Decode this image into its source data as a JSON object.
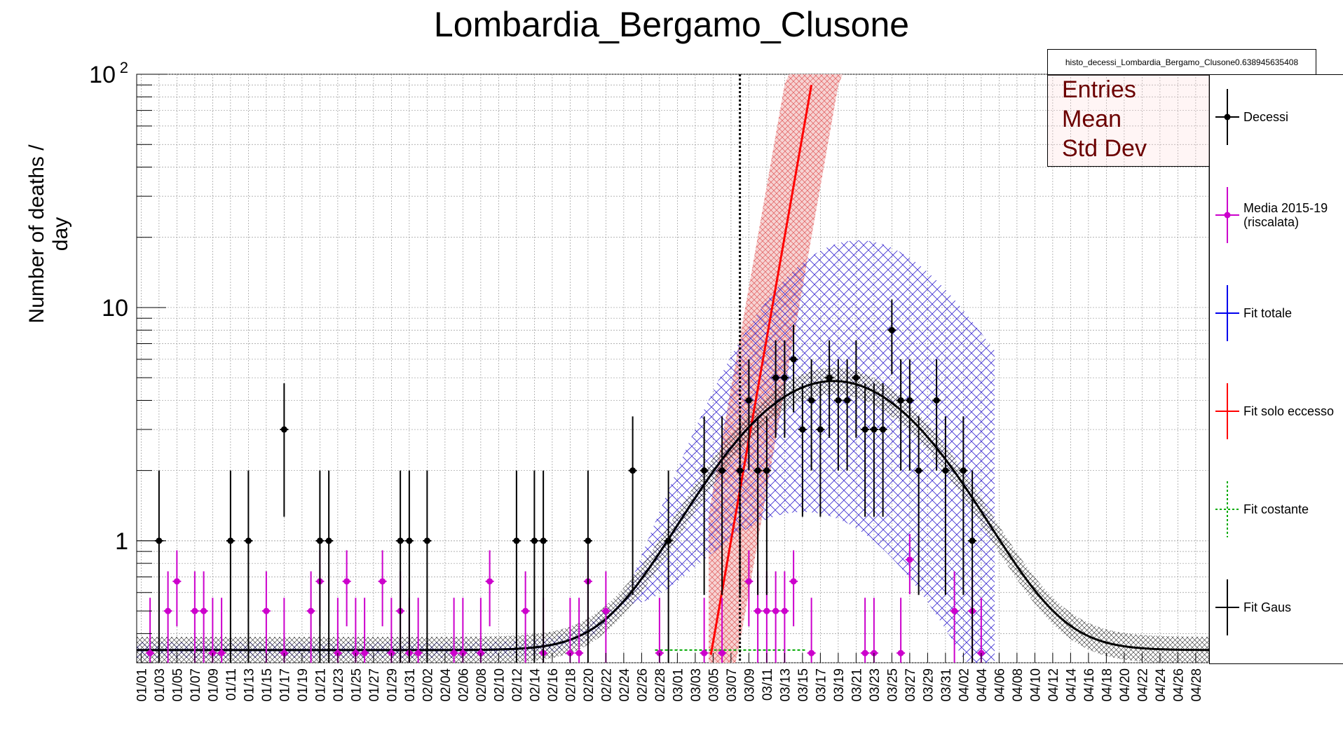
{
  "chart_data": {
    "type": "scatter",
    "title": "Lombardia_Bergamo_Clusone",
    "ylabel": "Number of deaths / day",
    "xlabel": "",
    "yscale": "log",
    "ylim": [
      0.3,
      100
    ],
    "xlim": [
      0,
      120
    ],
    "grid": true,
    "legend_placement": "right",
    "x_tick_labels": [
      "01/01",
      "01/03",
      "01/05",
      "01/07",
      "01/09",
      "01/11",
      "01/13",
      "01/15",
      "01/17",
      "01/19",
      "01/21",
      "01/23",
      "01/25",
      "01/27",
      "01/29",
      "01/31",
      "02/02",
      "02/04",
      "02/06",
      "02/08",
      "02/10",
      "02/12",
      "02/14",
      "02/16",
      "02/18",
      "02/20",
      "02/22",
      "02/24",
      "02/26",
      "02/28",
      "03/01",
      "03/03",
      "03/05",
      "03/07",
      "03/09",
      "03/11",
      "03/13",
      "03/15",
      "03/17",
      "03/19",
      "03/21",
      "03/23",
      "03/25",
      "03/27",
      "03/29",
      "03/31",
      "04/02",
      "04/04",
      "04/06",
      "04/08",
      "04/10",
      "04/12",
      "04/14",
      "04/16",
      "04/18",
      "04/20",
      "04/22",
      "04/24",
      "04/26",
      "04/28"
    ],
    "y_tick_labels": [
      {
        "value": 1,
        "label": "1"
      },
      {
        "value": 10,
        "label": "10"
      },
      {
        "value": 100,
        "label": "10",
        "exp": "2"
      }
    ],
    "series": [
      {
        "name": "Decessi",
        "color": "#000000",
        "points": [
          [
            2,
            1
          ],
          [
            10,
            1
          ],
          [
            12,
            1
          ],
          [
            16,
            3
          ],
          [
            20,
            1
          ],
          [
            21,
            1
          ],
          [
            29,
            1
          ],
          [
            30,
            1
          ],
          [
            32,
            1
          ],
          [
            42,
            1
          ],
          [
            44,
            1
          ],
          [
            45,
            1
          ],
          [
            50,
            1
          ],
          [
            55,
            2
          ],
          [
            59,
            1
          ],
          [
            63,
            2
          ],
          [
            65,
            2
          ],
          [
            67,
            2
          ],
          [
            68,
            4
          ],
          [
            69,
            2
          ],
          [
            70,
            2
          ],
          [
            71,
            5
          ],
          [
            72,
            5
          ],
          [
            73,
            6
          ],
          [
            74,
            3
          ],
          [
            75,
            4
          ],
          [
            76,
            3
          ],
          [
            77,
            5
          ],
          [
            78,
            4
          ],
          [
            79,
            4
          ],
          [
            80,
            5
          ],
          [
            81,
            3
          ],
          [
            82,
            3
          ],
          [
            83,
            3
          ],
          [
            84,
            8
          ],
          [
            85,
            4
          ],
          [
            86,
            4
          ],
          [
            87,
            2
          ],
          [
            89,
            4
          ],
          [
            90,
            2
          ],
          [
            92,
            2
          ],
          [
            93,
            1
          ]
        ]
      },
      {
        "name": "Media 2015-19",
        "name2": "(riscalata)",
        "color": "#cc00cc",
        "points": [
          [
            1,
            0.33
          ],
          [
            3,
            0.5
          ],
          [
            4,
            0.67
          ],
          [
            6,
            0.5
          ],
          [
            7,
            0.5
          ],
          [
            8,
            0.33
          ],
          [
            9,
            0.33
          ],
          [
            14,
            0.5
          ],
          [
            16,
            0.33
          ],
          [
            19,
            0.5
          ],
          [
            20,
            0.67
          ],
          [
            22,
            0.33
          ],
          [
            23,
            0.67
          ],
          [
            24,
            0.33
          ],
          [
            25,
            0.33
          ],
          [
            27,
            0.67
          ],
          [
            28,
            0.33
          ],
          [
            29,
            0.5
          ],
          [
            30,
            0.33
          ],
          [
            31,
            0.33
          ],
          [
            35,
            0.33
          ],
          [
            36,
            0.33
          ],
          [
            38,
            0.33
          ],
          [
            39,
            0.67
          ],
          [
            43,
            0.5
          ],
          [
            45,
            0.33
          ],
          [
            48,
            0.33
          ],
          [
            49,
            0.33
          ],
          [
            50,
            0.67
          ],
          [
            52,
            0.5
          ],
          [
            58,
            0.33
          ],
          [
            63,
            0.33
          ],
          [
            65,
            0.33
          ],
          [
            68,
            0.67
          ],
          [
            69,
            0.5
          ],
          [
            70,
            0.5
          ],
          [
            71,
            0.5
          ],
          [
            72,
            0.5
          ],
          [
            73,
            0.67
          ],
          [
            75,
            0.33
          ],
          [
            81,
            0.33
          ],
          [
            82,
            0.33
          ],
          [
            85,
            0.33
          ],
          [
            86,
            0.83
          ],
          [
            91,
            0.5
          ],
          [
            93,
            0.5
          ],
          [
            94,
            0.33
          ]
        ]
      },
      {
        "name": "Fit totale",
        "color": "#0000ee"
      },
      {
        "name": "Fit solo eccesso",
        "color": "#ff0000"
      },
      {
        "name": "Fit costante",
        "color": "#00aa00",
        "value": 0.34
      },
      {
        "name": "Fit Gaus",
        "color": "#000000",
        "constant": 0.34,
        "amplitude": 4.5,
        "mean": 78,
        "sigma": 9.5
      }
    ],
    "vertical_line_x": 67.5
  },
  "statbox": {
    "name": "histo_decessi_Lombardia_Bergamo_Clusone0.638945635408",
    "entries_label": "Entries",
    "mean_label": "Mean",
    "stddev_label": "Std Dev"
  }
}
